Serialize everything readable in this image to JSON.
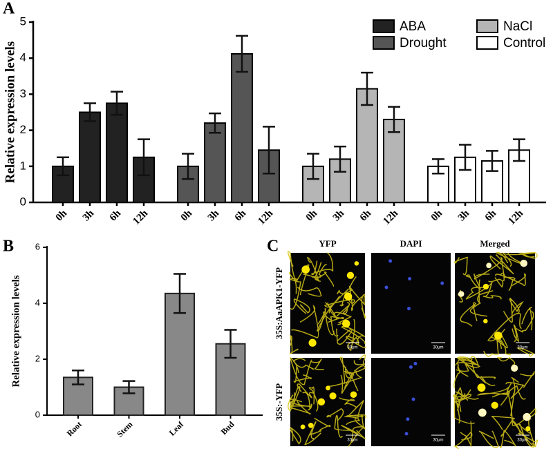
{
  "chart_data": [
    {
      "type": "grouped-bar",
      "panel_label": "A",
      "y_label": "Relative expression levels",
      "categories": [
        "0h",
        "3h",
        "6h",
        "12h"
      ],
      "series": [
        {
          "name": "ABA",
          "color": "#222222",
          "values": [
            1.0,
            2.5,
            2.75,
            1.25
          ],
          "errors": [
            0.25,
            0.25,
            0.32,
            0.5
          ]
        },
        {
          "name": "Drought",
          "color": "#555555",
          "values": [
            1.0,
            2.2,
            4.12,
            1.45
          ],
          "errors": [
            0.35,
            0.27,
            0.5,
            0.65
          ]
        },
        {
          "name": "NaCl",
          "color": "#b5b5b5",
          "values": [
            1.0,
            1.2,
            3.15,
            2.3
          ],
          "errors": [
            0.35,
            0.35,
            0.45,
            0.35
          ]
        },
        {
          "name": "Control",
          "color": "#ffffff",
          "values": [
            1.0,
            1.25,
            1.15,
            1.45
          ],
          "errors": [
            0.2,
            0.35,
            0.28,
            0.3
          ]
        }
      ],
      "ylim": [
        0,
        5
      ],
      "yticks": [
        0,
        1,
        2,
        3,
        4,
        5
      ]
    },
    {
      "type": "bar",
      "panel_label": "B",
      "y_label": "Relative expression levels",
      "categories": [
        "Root",
        "Stem",
        "Leaf",
        "Bud"
      ],
      "color": "#888888",
      "values": [
        1.35,
        1.0,
        4.35,
        2.55
      ],
      "errors": [
        0.25,
        0.22,
        0.7,
        0.5
      ],
      "ylim": [
        0,
        6
      ],
      "yticks": [
        0,
        2,
        4,
        6
      ]
    }
  ],
  "panel_c": {
    "panel_label": "C",
    "columns": [
      "YFP",
      "DAPI",
      "Merged"
    ],
    "rows": [
      "35S:AaAPK1-YFP",
      "35S:-YFP"
    ],
    "scale_bar": "30μm"
  }
}
